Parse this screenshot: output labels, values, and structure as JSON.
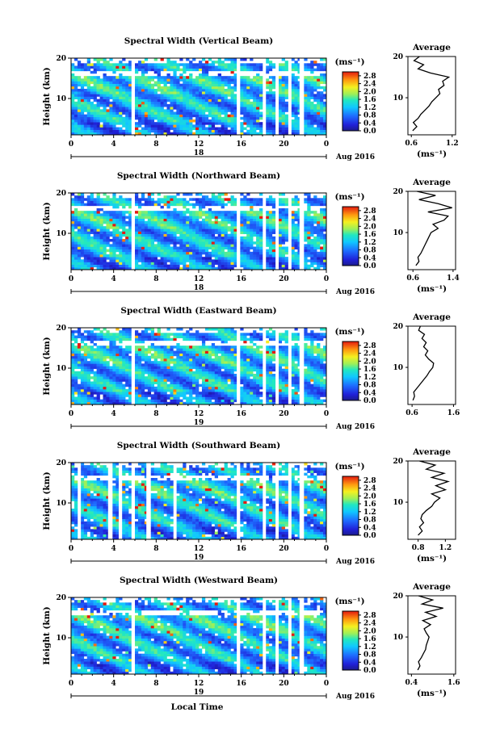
{
  "figure": {
    "x_axis_title": "Local Time",
    "y_axis_title": "Height (km)",
    "unit_label": "(ms⁻¹)",
    "average_title": "Average"
  },
  "chart_data": [
    {
      "type": "heatmap",
      "title": "Spectral Width (Vertical Beam)",
      "xlabel": "",
      "ylabel": "Height (km)",
      "x_ticks": [
        "0",
        "4",
        "8",
        "12",
        "16",
        "20",
        "0"
      ],
      "y_ticks": [
        "20",
        "10"
      ],
      "xlim": [
        0,
        24
      ],
      "ylim": [
        1,
        20
      ],
      "date_labels": {
        "left": "18",
        "right": "Aug 2016"
      },
      "colorbar": {
        "unit": "(ms⁻¹)",
        "ticks": [
          "2.8",
          "2.4",
          "2.0",
          "1.6",
          "1.2",
          "0.8",
          "0.4",
          "0.0"
        ],
        "range": [
          0,
          3.0
        ]
      },
      "gaps_hours": [
        5.8,
        15.7,
        18.2,
        19.4,
        20.6,
        21.6
      ],
      "average_profile": {
        "title": "Average",
        "xlabel": "(ms⁻¹)",
        "x_ticks": [
          "0.6",
          "1.2"
        ],
        "xlim": [
          0.55,
          1.25
        ],
        "y_ticks": [
          "20",
          "10"
        ],
        "height_km": [
          2,
          3,
          4,
          5,
          6,
          7,
          8,
          9,
          10,
          11,
          12,
          13,
          14,
          15,
          16,
          17,
          18,
          19,
          20
        ],
        "width_ms": [
          0.62,
          0.68,
          0.63,
          0.7,
          0.74,
          0.8,
          0.86,
          0.9,
          0.96,
          1.02,
          1.0,
          1.08,
          1.06,
          1.15,
          0.88,
          0.7,
          0.78,
          0.64,
          0.72
        ]
      }
    },
    {
      "type": "heatmap",
      "title": "Spectral Width (Northward Beam)",
      "xlabel": "",
      "ylabel": "Height (km)",
      "x_ticks": [
        "0",
        "4",
        "8",
        "12",
        "16",
        "20",
        "0"
      ],
      "y_ticks": [
        "20",
        "10"
      ],
      "xlim": [
        0,
        24
      ],
      "ylim": [
        1,
        20
      ],
      "date_labels": {
        "left": "18",
        "right": "Aug 2016"
      },
      "colorbar": {
        "unit": "(ms⁻¹)",
        "ticks": [
          "2.8",
          "2.4",
          "2.0",
          "1.6",
          "1.2",
          "0.8",
          "0.4",
          "0.0"
        ],
        "range": [
          0,
          3.0
        ]
      },
      "gaps_hours": [
        5.8,
        15.7,
        18.2,
        19.4,
        20.6,
        21.6
      ],
      "average_profile": {
        "title": "Average",
        "xlabel": "(ms⁻¹)",
        "x_ticks": [
          "0.6",
          "1.4"
        ],
        "xlim": [
          0.5,
          1.45
        ],
        "y_ticks": [
          "20",
          "10"
        ],
        "height_km": [
          2,
          3,
          4,
          5,
          6,
          7,
          8,
          9,
          10,
          11,
          12,
          13,
          14,
          15,
          16,
          17,
          18,
          19,
          20
        ],
        "width_ms": [
          0.66,
          0.72,
          0.7,
          0.76,
          0.8,
          0.84,
          0.88,
          0.92,
          0.96,
          1.1,
          1.0,
          1.22,
          1.3,
          0.9,
          1.38,
          1.1,
          0.72,
          1.05,
          0.68
        ]
      }
    },
    {
      "type": "heatmap",
      "title": "Spectral Width (Eastward Beam)",
      "xlabel": "",
      "ylabel": "Height (km)",
      "x_ticks": [
        "0",
        "4",
        "8",
        "12",
        "16",
        "20",
        "0"
      ],
      "y_ticks": [
        "20",
        "10"
      ],
      "xlim": [
        0,
        24
      ],
      "ylim": [
        1,
        20
      ],
      "date_labels": {
        "left": "19",
        "right": "Aug 2016"
      },
      "colorbar": {
        "unit": "(ms⁻¹)",
        "ticks": [
          "2.8",
          "2.4",
          "2.0",
          "1.6",
          "1.2",
          "0.8",
          "0.4",
          "0.0"
        ],
        "range": [
          0,
          3.0
        ]
      },
      "gaps_hours": [
        5.8,
        15.7,
        18.2,
        19.4,
        20.6,
        21.6
      ],
      "average_profile": {
        "title": "Average",
        "xlabel": "",
        "x_ticks": [
          "0.6",
          "1.6"
        ],
        "xlim": [
          0.5,
          1.65
        ],
        "y_ticks": [
          "20",
          "10"
        ],
        "height_km": [
          2,
          3,
          4,
          5,
          6,
          7,
          8,
          9,
          10,
          11,
          12,
          13,
          14,
          15,
          16,
          17,
          18,
          19,
          20
        ],
        "width_ms": [
          0.62,
          0.66,
          0.64,
          0.72,
          0.8,
          0.88,
          0.96,
          1.02,
          1.1,
          1.12,
          1.0,
          0.92,
          0.98,
          0.88,
          0.94,
          0.84,
          0.9,
          0.76,
          0.8
        ]
      }
    },
    {
      "type": "heatmap",
      "title": "Spectral Width (Southward Beam)",
      "xlabel": "",
      "ylabel": "Height (km)",
      "x_ticks": [
        "0",
        "4",
        "8",
        "12",
        "16",
        "20",
        "0"
      ],
      "y_ticks": [
        "20",
        "10"
      ],
      "xlim": [
        0,
        24
      ],
      "ylim": [
        1,
        20
      ],
      "date_labels": {
        "left": "19",
        "right": "Aug 2016"
      },
      "colorbar": {
        "unit": "(ms⁻¹)",
        "ticks": [
          "2.8",
          "2.4",
          "2.0",
          "1.6",
          "1.2",
          "0.8",
          "0.4",
          "0.0"
        ],
        "range": [
          0,
          3.0
        ]
      },
      "gaps_hours": [
        0.8,
        3.6,
        4.6,
        5.8,
        7.2,
        9.8,
        15.7,
        18.2,
        19.4,
        20.6,
        21.6
      ],
      "average_profile": {
        "title": "Average",
        "xlabel": "(ms⁻¹)",
        "x_ticks": [
          "0.8",
          "1.2"
        ],
        "xlim": [
          0.65,
          1.35
        ],
        "y_ticks": [
          "20",
          "10"
        ],
        "height_km": [
          2,
          3,
          4,
          5,
          6,
          7,
          8,
          9,
          10,
          11,
          12,
          13,
          14,
          15,
          16,
          17,
          18,
          19,
          20
        ],
        "width_ms": [
          0.8,
          0.86,
          0.82,
          0.88,
          0.84,
          0.86,
          0.92,
          1.0,
          1.04,
          1.12,
          1.0,
          1.2,
          1.06,
          1.24,
          1.0,
          1.18,
          0.92,
          1.05,
          0.82
        ]
      }
    },
    {
      "type": "heatmap",
      "title": "Spectral Width (Westward Beam)",
      "xlabel": "Local Time",
      "ylabel": "Height (km)",
      "x_ticks": [
        "0",
        "4",
        "8",
        "12",
        "16",
        "20",
        "0"
      ],
      "y_ticks": [
        "20",
        "10"
      ],
      "xlim": [
        0,
        24
      ],
      "ylim": [
        1,
        20
      ],
      "date_labels": {
        "left": "19",
        "right": "Aug 2016"
      },
      "colorbar": {
        "unit": "(ms⁻¹)",
        "ticks": [
          "2.8",
          "2.4",
          "2.0",
          "1.6",
          "1.2",
          "0.8",
          "0.4",
          "0.0"
        ],
        "range": [
          0,
          3.0
        ]
      },
      "gaps_hours": [
        5.8,
        15.7,
        18.2,
        19.4,
        20.6,
        21.6
      ],
      "average_profile": {
        "title": "Average",
        "xlabel": "(ms⁻¹)",
        "x_ticks": [
          "0.4",
          "1.6"
        ],
        "xlim": [
          0.3,
          1.65
        ],
        "y_ticks": [
          "20",
          "10"
        ],
        "height_km": [
          2,
          3,
          4,
          5,
          6,
          7,
          8,
          9,
          10,
          11,
          12,
          13,
          14,
          15,
          16,
          17,
          18,
          19,
          20
        ],
        "width_ms": [
          0.58,
          0.64,
          0.6,
          0.68,
          0.74,
          0.8,
          0.82,
          0.86,
          0.9,
          0.82,
          0.76,
          0.94,
          0.72,
          1.1,
          0.8,
          1.3,
          0.7,
          1.0,
          0.6
        ]
      }
    }
  ]
}
